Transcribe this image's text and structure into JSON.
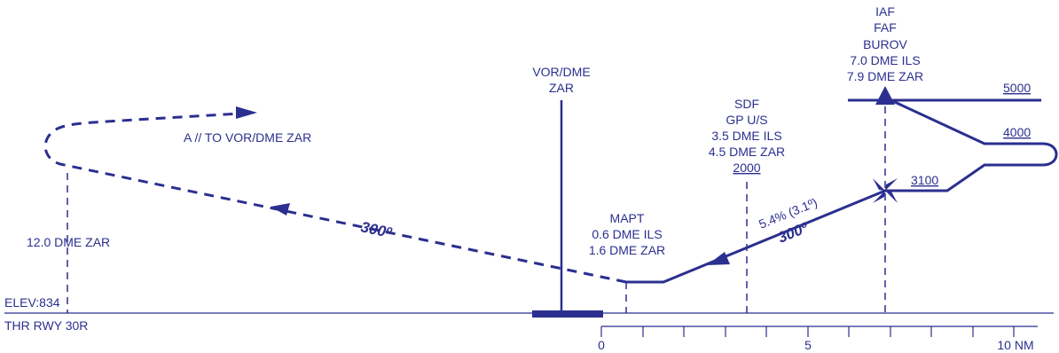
{
  "colors": {
    "chart_blue": "#2b2f8f",
    "background": "#ffffff"
  },
  "missed_approach": {
    "instruction": "A // TO VOR/DME ZAR",
    "turn_fix": "12.0 DME ZAR",
    "course": "300º"
  },
  "navaid": {
    "lines": [
      "VOR/DME",
      "ZAR"
    ]
  },
  "mapt": {
    "lines": [
      "MAPT",
      "0.6 DME ILS",
      "1.6 DME ZAR"
    ]
  },
  "sdf": {
    "lines": [
      "SDF",
      "GP U/S",
      "3.5 DME ILS",
      "4.5 DME ZAR"
    ],
    "altitude": "2000"
  },
  "iaf": {
    "lines": [
      "IAF",
      "FAF",
      "BUROV",
      "7.0 DME ILS",
      "7.9 DME ZAR"
    ]
  },
  "approach": {
    "gradient": "5.4% (3.1º)",
    "course": "300º"
  },
  "altitudes": {
    "a5000": "5000",
    "a4000": "4000",
    "a3100": "3100"
  },
  "aerodrome": {
    "elevation": "ELEV:834",
    "threshold": "THR RWY 30R"
  },
  "scale": {
    "labels": [
      "0",
      "5",
      "10 NM"
    ]
  }
}
